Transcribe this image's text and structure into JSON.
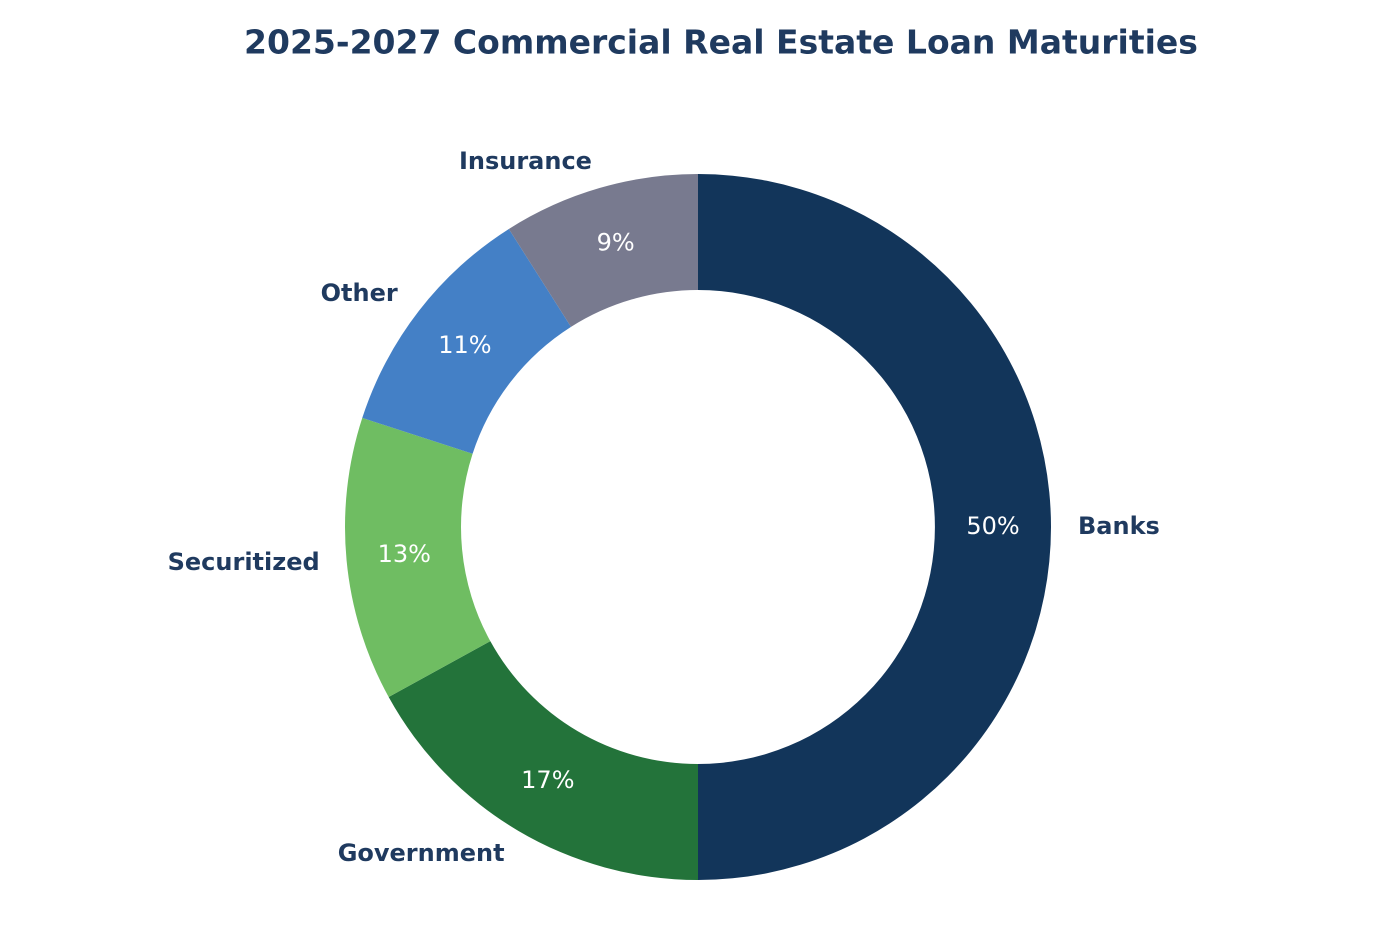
{
  "chart_data": {
    "type": "donut",
    "title": "2025-2027 Commercial Real Estate Loan Maturities",
    "categories": [
      "Banks",
      "Government",
      "Securitized",
      "Other",
      "Insurance"
    ],
    "values": [
      50,
      17,
      13,
      11,
      9
    ],
    "value_labels": [
      "50%",
      "17%",
      "13%",
      "11%",
      "9%"
    ],
    "colors": [
      "#12355a",
      "#23733a",
      "#6fbd62",
      "#4480c6",
      "#787a8f"
    ]
  }
}
